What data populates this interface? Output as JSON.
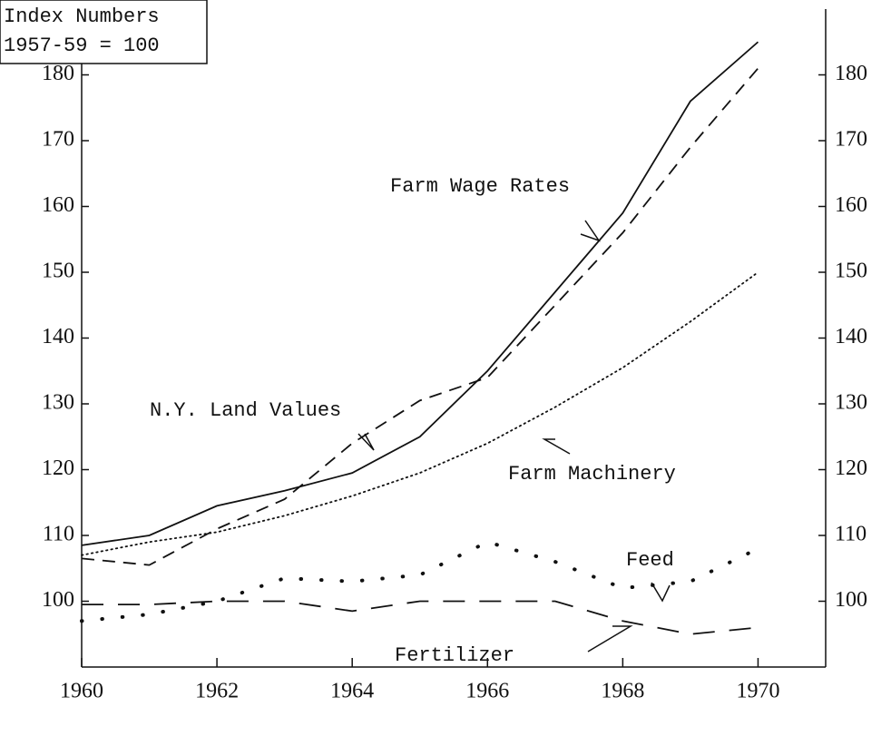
{
  "chart_data": {
    "type": "line",
    "axis_label_lines": [
      "Index Numbers",
      "1957-59 = 100"
    ],
    "x": [
      1960,
      1961,
      1962,
      1963,
      1964,
      1965,
      1966,
      1967,
      1968,
      1969,
      1970
    ],
    "series": [
      {
        "name": "Farm Wage Rates",
        "color": "#111111",
        "style": "solid",
        "values": [
          108.5,
          110,
          114.5,
          116.8,
          119.5,
          125,
          135,
          147,
          159,
          176,
          185
        ]
      },
      {
        "name": "N.Y. Land Values",
        "color": "#111111",
        "style": "dashed",
        "values": [
          106.5,
          105.5,
          111,
          115.5,
          124,
          130.5,
          134,
          145,
          156,
          169,
          181
        ]
      },
      {
        "name": "Farm Machinery",
        "color": "#111111",
        "style": "dotted",
        "values": [
          107,
          109,
          110.5,
          113,
          116,
          119.5,
          124,
          129.5,
          135.5,
          142.5,
          150
        ]
      },
      {
        "name": "Feed",
        "color": "#111111",
        "style": "sparse-dots",
        "values": [
          97,
          98,
          100,
          103.5,
          103,
          104,
          109,
          106,
          102,
          103,
          108
        ]
      },
      {
        "name": "Fertilizer",
        "color": "#111111",
        "style": "long-dashed",
        "values": [
          99.5,
          99.5,
          100,
          100,
          98.5,
          100,
          100,
          100,
          97,
          95,
          96
        ]
      }
    ],
    "xlim": [
      1960,
      1971
    ],
    "xticks": [
      1960,
      1962,
      1964,
      1966,
      1968,
      1970
    ],
    "ylim": [
      90,
      190
    ],
    "yticks": [
      100,
      110,
      120,
      130,
      140,
      150,
      160,
      170,
      180
    ],
    "y2lim": [
      90,
      190
    ],
    "y2ticks": [
      100,
      110,
      120,
      130,
      140,
      150,
      160,
      170,
      180
    ],
    "grid": false
  }
}
